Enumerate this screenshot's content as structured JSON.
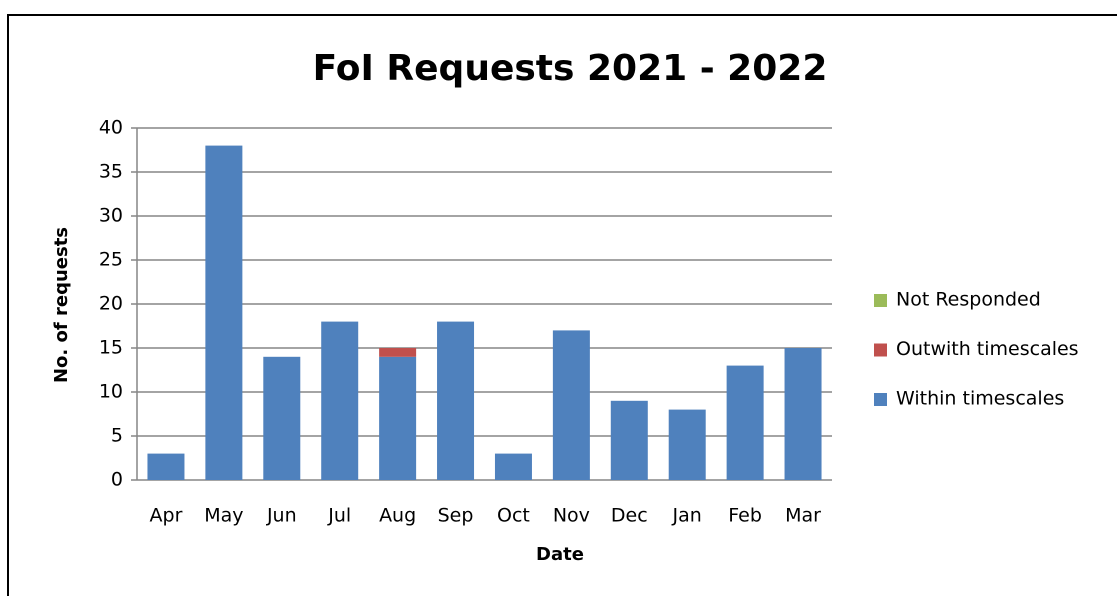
{
  "chart_data": {
    "type": "stacked_bar",
    "title": "FoI Requests 2021 - 2022",
    "x_label": "Date",
    "y_label": "No. of requests",
    "categories": [
      "Apr",
      "May",
      "Jun",
      "Jul",
      "Aug",
      "Sep",
      "Oct",
      "Nov",
      "Dec",
      "Jan",
      "Feb",
      "Mar"
    ],
    "series": [
      {
        "name": "Within timescales",
        "color": "#4f81bd",
        "values": [
          3,
          38,
          14,
          18,
          14,
          18,
          3,
          17,
          9,
          8,
          13,
          15
        ]
      },
      {
        "name": "Outwith timescales",
        "color": "#c0504d",
        "values": [
          0,
          0,
          0,
          0,
          1,
          0,
          0,
          0,
          0,
          0,
          0,
          0
        ]
      },
      {
        "name": "Not Responded",
        "color": "#9bbb59",
        "values": [
          0,
          0,
          0,
          0,
          0,
          0,
          0,
          0,
          0,
          0,
          0,
          0
        ]
      }
    ],
    "ylim": [
      0,
      40
    ],
    "yticks": [
      0,
      5,
      10,
      15,
      20,
      25,
      30,
      35,
      40
    ],
    "grid": true,
    "legend": "right"
  }
}
